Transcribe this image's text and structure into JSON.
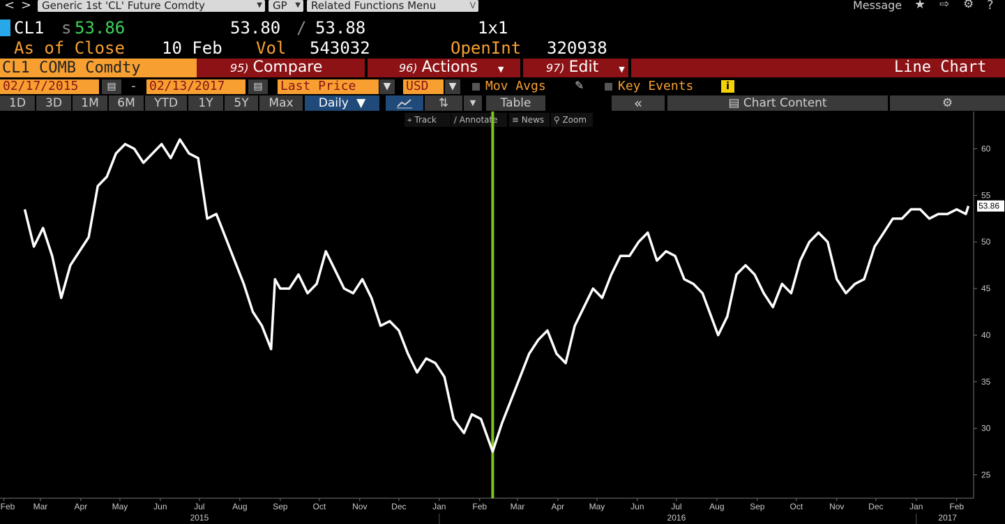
{
  "topbar": {
    "security": "Generic 1st 'CL' Future Comdty",
    "source": "GP",
    "related": "Related Functions  Menu",
    "message": "Message",
    "nav_back": "<",
    "nav_fwd": ">",
    "help": "?"
  },
  "quote": {
    "ticker": "CL1",
    "last_prefix": "s",
    "last": "53.86",
    "bid": "53.80",
    "slash": "/",
    "ask": "53.88",
    "size": "1x1",
    "asof_label": "As of Close",
    "asof_value": "10 Feb",
    "vol_label": "Vol",
    "vol_value": "543032",
    "oi_label": "OpenInt",
    "oi_value": "320938"
  },
  "funcbar": {
    "security": "CL1 COMB Comdty",
    "compare_num": "95)",
    "compare": "Compare",
    "actions_num": "96)",
    "actions": "Actions",
    "edit_num": "97)",
    "edit": "Edit",
    "chart_type": "Line Chart"
  },
  "datebar": {
    "start": "02/17/2015",
    "dash": "-",
    "end": "02/13/2017",
    "field": "Last Price",
    "currency": "USD",
    "mov_avgs": "Mov Avgs",
    "key_events": "Key Events",
    "info": "i"
  },
  "periodbar": {
    "periods": [
      "1D",
      "3D",
      "1M",
      "6M",
      "YTD",
      "1Y",
      "5Y",
      "Max"
    ],
    "frequency": "Daily",
    "table": "Table",
    "collapse": "«",
    "chart_content": "Chart Content"
  },
  "charttools": [
    "Track",
    "Annotate",
    "News",
    "Zoom"
  ],
  "colors": {
    "orange": "#f7a031",
    "red": "#8c1215",
    "green": "#3cd45a",
    "marker": "#7cc41f"
  },
  "chart_data": {
    "type": "line",
    "title": "",
    "ylabel": "",
    "xlabel": "",
    "ylim": [
      22.5,
      64
    ],
    "yticks": [
      25,
      30,
      35,
      40,
      45,
      50,
      55,
      60
    ],
    "last_value": "53.86",
    "x_tick_labels": [
      "Feb",
      "Mar",
      "Apr",
      "May",
      "Jun",
      "Jul",
      "Aug",
      "Sep",
      "Oct",
      "Nov",
      "Dec",
      "Jan",
      "Feb",
      "Mar",
      "Apr",
      "May",
      "Jun",
      "Jul",
      "Aug",
      "Sep",
      "Oct",
      "Nov",
      "Dec",
      "Jan",
      "Feb"
    ],
    "year_labels": [
      "2015",
      "2016",
      "2017"
    ],
    "marker_date": "2016-02-11",
    "series": [
      {
        "x": [
          "2015-02-17",
          "2015-02-24",
          "2015-03-03",
          "2015-03-10",
          "2015-03-17",
          "2015-03-24",
          "2015-03-31",
          "2015-04-07",
          "2015-04-14",
          "2015-04-21",
          "2015-04-28",
          "2015-05-05",
          "2015-05-12",
          "2015-05-19",
          "2015-05-26",
          "2015-06-02",
          "2015-06-09",
          "2015-06-16",
          "2015-06-23",
          "2015-06-30",
          "2015-07-07",
          "2015-07-14",
          "2015-07-21",
          "2015-07-28",
          "2015-08-04",
          "2015-08-11",
          "2015-08-18",
          "2015-08-25",
          "2015-08-28",
          "2015-09-01",
          "2015-09-08",
          "2015-09-15",
          "2015-09-22",
          "2015-09-29",
          "2015-10-06",
          "2015-10-13",
          "2015-10-20",
          "2015-10-27",
          "2015-11-03",
          "2015-11-10",
          "2015-11-17",
          "2015-11-24",
          "2015-12-01",
          "2015-12-08",
          "2015-12-15",
          "2015-12-22",
          "2015-12-29",
          "2016-01-05",
          "2016-01-12",
          "2016-01-20",
          "2016-01-26",
          "2016-02-02",
          "2016-02-11",
          "2016-02-18",
          "2016-02-25",
          "2016-03-03",
          "2016-03-10",
          "2016-03-17",
          "2016-03-24",
          "2016-03-31",
          "2016-04-07",
          "2016-04-14",
          "2016-04-21",
          "2016-04-28",
          "2016-05-05",
          "2016-05-12",
          "2016-05-19",
          "2016-05-26",
          "2016-06-02",
          "2016-06-09",
          "2016-06-16",
          "2016-06-23",
          "2016-06-30",
          "2016-07-07",
          "2016-07-14",
          "2016-07-21",
          "2016-08-02",
          "2016-08-09",
          "2016-08-16",
          "2016-08-23",
          "2016-08-30",
          "2016-09-06",
          "2016-09-13",
          "2016-09-20",
          "2016-09-27",
          "2016-10-04",
          "2016-10-11",
          "2016-10-18",
          "2016-10-25",
          "2016-11-01",
          "2016-11-08",
          "2016-11-15",
          "2016-11-22",
          "2016-11-30",
          "2016-12-07",
          "2016-12-14",
          "2016-12-21",
          "2016-12-28",
          "2017-01-04",
          "2017-01-11",
          "2017-01-18",
          "2017-01-25",
          "2017-02-01",
          "2017-02-08",
          "2017-02-10"
        ],
        "y": [
          53.5,
          49.5,
          51.5,
          48.5,
          44,
          47.5,
          49,
          50.5,
          56,
          57,
          59.5,
          60.5,
          60,
          58.5,
          59.5,
          60.5,
          59,
          61,
          59.5,
          59,
          52.5,
          53,
          50.5,
          48,
          45.5,
          42.5,
          41,
          38.5,
          46,
          45,
          45,
          46.5,
          44.5,
          45.5,
          49,
          47,
          45,
          44.5,
          46,
          44,
          41,
          41.5,
          40.5,
          38,
          36,
          37.5,
          37,
          35.5,
          31,
          29.5,
          31.5,
          31,
          27.5,
          30.5,
          33,
          35.5,
          38,
          39.5,
          40.5,
          38,
          37,
          41,
          43,
          45,
          44,
          46.5,
          48.5,
          48.5,
          50,
          51,
          48,
          49,
          48.5,
          46,
          45.5,
          44.5,
          40,
          42,
          46.5,
          47.5,
          46.5,
          44.5,
          43,
          45.5,
          44.5,
          48,
          50,
          51,
          50,
          46,
          44.5,
          45.5,
          46,
          49.5,
          51,
          52.5,
          52.5,
          53.5,
          53.5,
          52.5,
          53,
          53,
          53.5,
          53,
          53.86
        ]
      }
    ]
  }
}
